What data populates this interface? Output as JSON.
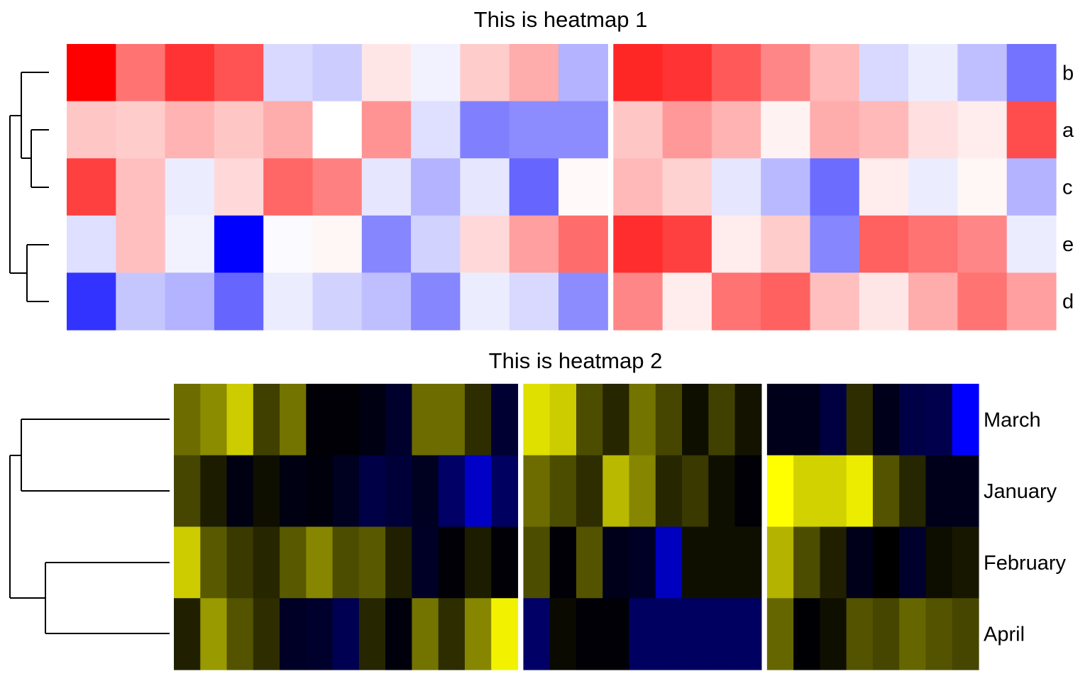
{
  "chart_data": [
    {
      "type": "heatmap",
      "title": "This is heatmap 1",
      "palette": {
        "low": "#0000FF",
        "mid": "#FFFFFF",
        "high": "#FF0000"
      },
      "value_range": [
        -2,
        2
      ],
      "rows": [
        "b",
        "a",
        "c",
        "e",
        "d"
      ],
      "column_groups": [
        11,
        9
      ],
      "values": [
        [
          2.0,
          1.1,
          1.6,
          1.35,
          -0.3,
          -0.4,
          0.2,
          -0.1,
          0.4,
          0.65,
          -0.6,
          1.7,
          1.6,
          1.3,
          0.95,
          0.55,
          -0.3,
          -0.15,
          -0.5,
          -1.1
        ],
        [
          0.45,
          0.4,
          0.6,
          0.45,
          0.65,
          0.0,
          0.85,
          -0.25,
          -1.0,
          -0.9,
          -0.9,
          0.45,
          0.8,
          0.6,
          0.1,
          0.65,
          0.55,
          0.25,
          0.15,
          1.4
        ],
        [
          1.5,
          0.5,
          -0.15,
          0.3,
          1.2,
          1.0,
          -0.2,
          -0.6,
          -0.2,
          -1.2,
          0.05,
          0.55,
          0.35,
          -0.2,
          -0.55,
          -1.15,
          0.15,
          -0.15,
          0.07,
          -0.6
        ],
        [
          -0.25,
          0.5,
          -0.1,
          -2.0,
          -0.03,
          0.07,
          -0.95,
          -0.35,
          0.3,
          0.75,
          1.15,
          1.65,
          1.5,
          0.15,
          0.4,
          -0.95,
          1.25,
          1.1,
          0.95,
          -0.15
        ],
        [
          -1.6,
          -0.45,
          -0.6,
          -1.2,
          -0.15,
          -0.35,
          -0.5,
          -0.95,
          -0.15,
          -0.3,
          -0.9,
          0.95,
          0.15,
          1.1,
          1.25,
          0.5,
          0.2,
          0.65,
          1.1,
          0.75
        ]
      ],
      "dendrogram": "left",
      "row_label_side": "right"
    },
    {
      "type": "heatmap",
      "title": "This is heatmap 2",
      "palette": {
        "low": "#0000FF",
        "mid": "#000000",
        "high": "#FFFF00"
      },
      "value_range": [
        -2,
        2
      ],
      "rows": [
        "March",
        "January",
        "February",
        "April"
      ],
      "column_groups": [
        13,
        9,
        8
      ],
      "values": [
        [
          0.85,
          1.1,
          1.6,
          0.5,
          0.9,
          -0.05,
          -0.05,
          -0.15,
          -0.35,
          0.85,
          0.85,
          0.35,
          -0.4,
          1.75,
          1.6,
          0.6,
          0.3,
          0.9,
          0.55,
          0.12,
          0.5,
          0.15,
          -0.2,
          -0.2,
          -0.5,
          0.35,
          -0.2,
          -0.55,
          -0.6,
          -2.0
        ],
        [
          0.55,
          0.22,
          -0.15,
          0.12,
          -0.15,
          -0.1,
          -0.25,
          -0.55,
          -0.45,
          -0.25,
          -0.8,
          -1.55,
          -0.75,
          0.85,
          0.6,
          0.35,
          1.45,
          1.05,
          0.3,
          0.45,
          0.12,
          -0.05,
          2.0,
          1.65,
          1.65,
          1.85,
          0.65,
          0.3,
          -0.2,
          -0.2
        ],
        [
          1.6,
          0.7,
          0.45,
          0.3,
          0.7,
          1.05,
          0.6,
          0.7,
          0.25,
          -0.3,
          -0.05,
          0.22,
          -0.05,
          0.6,
          -0.05,
          0.65,
          -0.2,
          -0.3,
          -1.5,
          0.12,
          0.12,
          0.12,
          1.4,
          0.6,
          0.25,
          -0.2,
          0.0,
          -0.35,
          0.1,
          0.18
        ],
        [
          0.25,
          1.2,
          0.65,
          0.35,
          -0.3,
          -0.35,
          -0.65,
          0.3,
          -0.1,
          0.9,
          0.35,
          1.05,
          1.9,
          -0.8,
          0.08,
          -0.05,
          -0.05,
          -0.75,
          -0.75,
          -0.75,
          -0.75,
          -0.75,
          0.8,
          -0.03,
          0.12,
          0.65,
          0.55,
          0.8,
          0.65,
          0.55
        ]
      ],
      "dendrogram": "left",
      "row_label_side": "right"
    }
  ]
}
